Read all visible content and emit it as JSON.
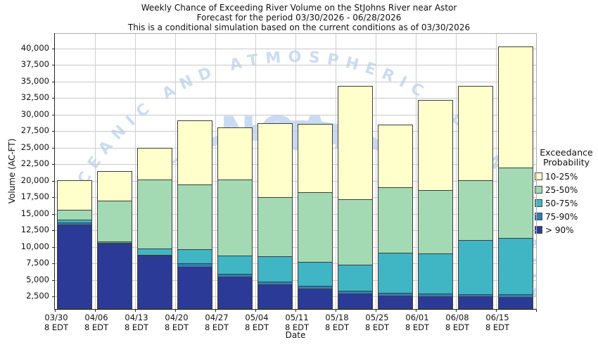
{
  "chart_data": {
    "type": "bar",
    "stacked": true,
    "title_lines": [
      "Weekly Chance of Exceeding River Volume on the StJohns River near Astor",
      "Forecast for the period 03/30/2026 - 06/28/2026",
      "This is a conditional simulation based on the current conditions as of 03/30/2026"
    ],
    "xlabel": "Date",
    "ylabel": "Volume (AC-FT)",
    "ylim": [
      580,
      42230
    ],
    "yticks": [
      2500,
      5000,
      7500,
      10000,
      12500,
      15000,
      17500,
      20000,
      22500,
      25000,
      27500,
      30000,
      32500,
      35000,
      37500,
      40000
    ],
    "grid": true,
    "legend": {
      "position": "right",
      "title_lines": [
        "Exceedance",
        "Probability"
      ],
      "entries": [
        {
          "label": "10-25%",
          "key": "p10",
          "color": "#FFFFCC"
        },
        {
          "label": "25-50%",
          "key": "p25",
          "color": "#A3DAB4"
        },
        {
          "label": "50-75%",
          "key": "p50",
          "color": "#40B5C4"
        },
        {
          "label": "75-90%",
          "key": "p75",
          "color": "#2E7EBC"
        },
        {
          "label": "> 90%",
          "key": "p90",
          "color": "#2B3A96"
        }
      ]
    },
    "watermark": {
      "arc_text": "OCEANIC AND ATMOSPHERIC ADMINISTRATION",
      "center_text": "NOAA",
      "color": "#cbdcf4"
    },
    "bars": [
      {
        "date": "03/30",
        "time": "8 EDT",
        "p90": 13400,
        "p75": 13700,
        "p50": 14100,
        "p25": 15600,
        "p10": 20050
      },
      {
        "date": "04/06",
        "time": "8 EDT",
        "p90": 10450,
        "p75": 10550,
        "p50": 10850,
        "p25": 16950,
        "p10": 21450
      },
      {
        "date": "04/13",
        "time": "8 EDT",
        "p90": 8650,
        "p75": 8750,
        "p50": 9700,
        "p25": 20150,
        "p10": 25000
      },
      {
        "date": "04/20",
        "time": "8 EDT",
        "p90": 7000,
        "p75": 7500,
        "p50": 9600,
        "p25": 19400,
        "p10": 29150
      },
      {
        "date": "04/27",
        "time": "8 EDT",
        "p90": 5500,
        "p75": 5900,
        "p50": 8650,
        "p25": 20200,
        "p10": 28050
      },
      {
        "date": "05/04",
        "time": "8 EDT",
        "p90": 4300,
        "p75": 4750,
        "p50": 8550,
        "p25": 17550,
        "p10": 28650
      },
      {
        "date": "05/11",
        "time": "8 EDT",
        "p90": 3650,
        "p75": 4100,
        "p50": 7750,
        "p25": 18250,
        "p10": 28550
      },
      {
        "date": "05/18",
        "time": "8 EDT",
        "p90": 2950,
        "p75": 3350,
        "p50": 7250,
        "p25": 17250,
        "p10": 34350
      },
      {
        "date": "05/25",
        "time": "8 EDT",
        "p90": 2600,
        "p75": 3050,
        "p50": 9050,
        "p25": 19000,
        "p10": 28450
      },
      {
        "date": "06/01",
        "time": "8 EDT",
        "p90": 2500,
        "p75": 2950,
        "p50": 8950,
        "p25": 18600,
        "p10": 32200
      },
      {
        "date": "06/08",
        "time": "8 EDT",
        "p90": 2450,
        "p75": 2850,
        "p50": 11050,
        "p25": 20050,
        "p10": 34350
      },
      {
        "date": "06/15",
        "time": "8 EDT",
        "p90": 2350,
        "p75": 2800,
        "p50": 11350,
        "p25": 22000,
        "p10": 40350
      }
    ]
  }
}
